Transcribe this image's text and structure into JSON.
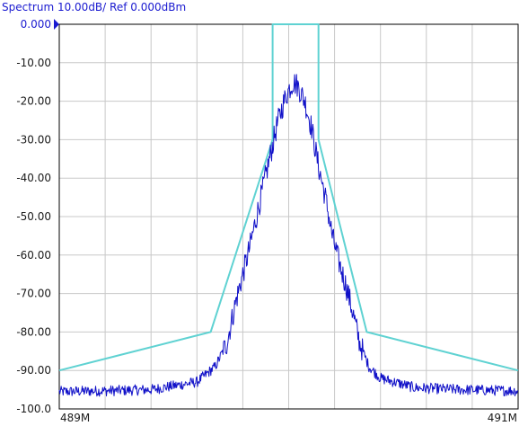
{
  "chart_data": {
    "type": "line",
    "title": "Spectrum 10.00dB/ Ref 0.000dBm",
    "y_ticks": [
      "0.000",
      "-10.00",
      "-20.00",
      "-30.00",
      "-40.00",
      "-50.00",
      "-60.00",
      "-70.00",
      "-80.00",
      "-90.00",
      "-100.0"
    ],
    "ylim": [
      -100,
      0
    ],
    "x_start_label": "489M",
    "x_stop_label": "491M",
    "xlim_mhz": [
      489,
      491
    ],
    "x_divisions": 10,
    "y_divisions": 10,
    "grid": true,
    "series": [
      {
        "role": "mask",
        "color": "#5fd2d2",
        "x": [
          489.0,
          489.66,
          489.93,
          489.93,
          490.13,
          490.13,
          490.34,
          491.0
        ],
        "y": [
          -90,
          -80,
          -30,
          0,
          0,
          -30,
          -80,
          -90
        ]
      },
      {
        "role": "trace",
        "color": "#1010c8",
        "x": [
          489.0,
          489.2,
          489.4,
          489.6,
          489.68,
          489.73,
          489.77,
          489.8,
          489.83,
          489.86,
          489.89,
          489.92,
          489.95,
          489.98,
          490.0,
          490.02,
          490.04,
          490.07,
          490.1,
          490.13,
          490.16,
          490.19,
          490.22,
          490.25,
          490.28,
          490.31,
          490.35,
          490.4,
          490.55,
          490.75,
          491.0
        ],
        "y": [
          -95.5,
          -95.3,
          -95.0,
          -93.0,
          -89.0,
          -83.0,
          -72.0,
          -65.0,
          -58.0,
          -50.0,
          -42.0,
          -34.0,
          -26.0,
          -20.0,
          -17.0,
          -15.0,
          -16.0,
          -20.0,
          -27.0,
          -37.0,
          -45.0,
          -55.0,
          -62.0,
          -68.0,
          -75.0,
          -83.0,
          -89.0,
          -92.0,
          -94.5,
          -95.0,
          -95.3
        ]
      }
    ]
  }
}
